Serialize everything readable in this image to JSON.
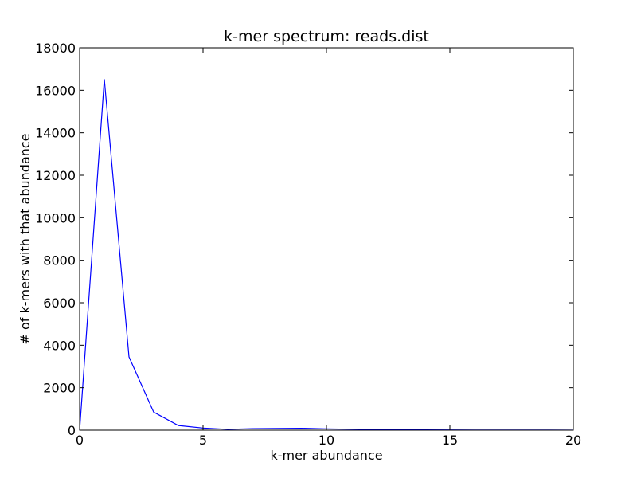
{
  "chart_data": {
    "type": "line",
    "title": "k-mer spectrum: reads.dist",
    "xlabel": "k-mer abundance",
    "ylabel": "# of k-mers with that abundance",
    "xlim": [
      0,
      20
    ],
    "ylim": [
      0,
      18000
    ],
    "xticks": [
      "0",
      "5",
      "10",
      "15",
      "20"
    ],
    "yticks": [
      "0",
      "2000",
      "4000",
      "6000",
      "8000",
      "10000",
      "12000",
      "14000",
      "16000",
      "18000"
    ],
    "grid": false,
    "legend": "none",
    "colors": {
      "line": "#0000ff",
      "frame": "#000000",
      "background": "#ffffff"
    },
    "series": [
      {
        "x": [
          0,
          1,
          2,
          3,
          4,
          5,
          6,
          7,
          8,
          9,
          10,
          11,
          12,
          13,
          14,
          15,
          16,
          17,
          18,
          19,
          20
        ],
        "y": [
          0,
          16520,
          3450,
          850,
          220,
          100,
          40,
          70,
          80,
          90,
          60,
          45,
          30,
          20,
          15,
          10,
          8,
          6,
          5,
          4,
          3
        ]
      }
    ]
  }
}
